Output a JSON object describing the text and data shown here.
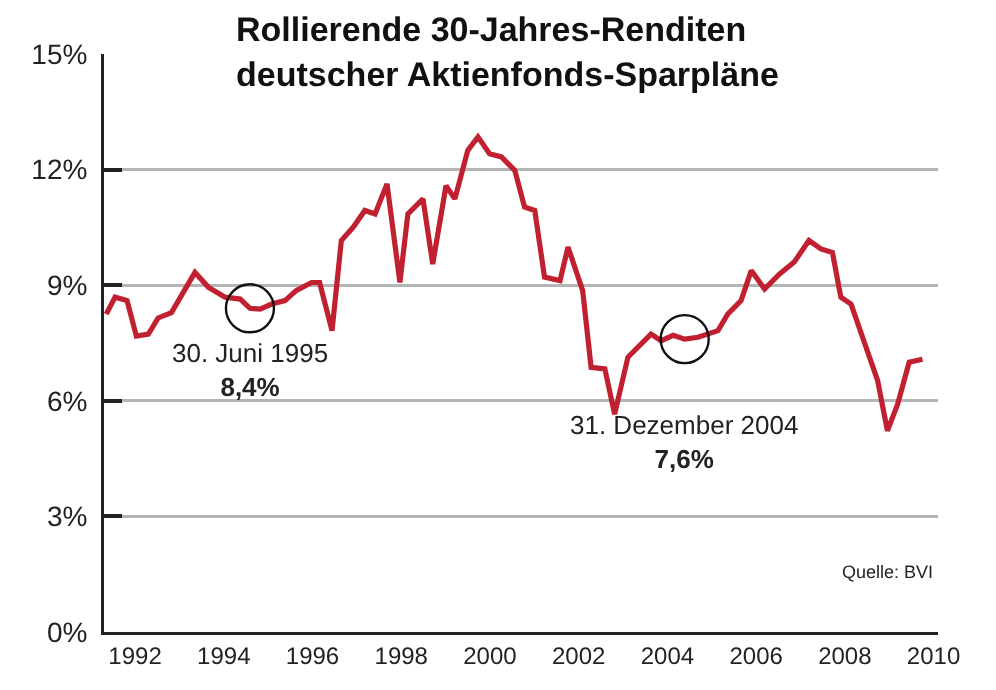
{
  "chart_data": {
    "type": "line",
    "title": "Rollierende 30-Jahres-Renditen\ndeutscher Aktienfonds-Sparpläne",
    "x": [
      1991.85,
      1992.05,
      1992.32,
      1992.53,
      1992.8,
      1993.02,
      1993.32,
      1993.85,
      1994.15,
      1994.53,
      1994.87,
      1995.09,
      1995.32,
      1995.58,
      1995.88,
      1996.13,
      1996.48,
      1996.66,
      1996.94,
      1997.15,
      1997.42,
      1997.68,
      1997.91,
      1998.18,
      1998.47,
      1998.65,
      1998.99,
      1999.21,
      1999.51,
      1999.71,
      2000.0,
      2000.23,
      2000.49,
      2000.76,
      2000.98,
      2001.06,
      2001.28,
      2001.51,
      2001.73,
      2002.08,
      2002.26,
      2002.59,
      2002.78,
      2003.09,
      2003.31,
      2003.61,
      2004.13,
      2004.36,
      2004.63,
      2004.89,
      2005.19,
      2005.64,
      2005.86,
      2006.16,
      2006.39,
      2006.69,
      2007.03,
      2007.36,
      2007.69,
      2007.96,
      2008.22,
      2008.41,
      2008.64,
      2009.24,
      2009.46,
      2009.69,
      2009.95,
      2010.25
    ],
    "series": [
      {
        "color": "#c0202f",
        "values": [
          8.25,
          8.69,
          8.6,
          7.68,
          7.73,
          8.15,
          8.29,
          9.33,
          8.95,
          8.69,
          8.64,
          8.4,
          8.38,
          8.51,
          8.6,
          8.86,
          9.07,
          9.07,
          7.82,
          10.16,
          10.51,
          10.94,
          10.85,
          11.63,
          9.07,
          10.85,
          11.24,
          9.55,
          11.58,
          11.24,
          12.5,
          12.85,
          12.41,
          12.33,
          12.07,
          11.98,
          11.03,
          10.94,
          9.21,
          9.12,
          9.99,
          8.86,
          6.87,
          6.83,
          5.65,
          7.13,
          7.73,
          7.56,
          7.7,
          7.6,
          7.65,
          7.82,
          8.25,
          8.6,
          9.38,
          8.9,
          9.29,
          9.6,
          10.16,
          9.94,
          9.85,
          8.69,
          8.51,
          6.52,
          5.22,
          5.91,
          7.0,
          7.08
        ]
      }
    ],
    "xlim": [
      1991.8,
      2010.6
    ],
    "xticks": [
      {
        "value": 1992.5,
        "label": "1992"
      },
      {
        "value": 1994.5,
        "label": "1994"
      },
      {
        "value": 1996.5,
        "label": "1996"
      },
      {
        "value": 1998.5,
        "label": "1998"
      },
      {
        "value": 2000.5,
        "label": "2000"
      },
      {
        "value": 2002.5,
        "label": "2002"
      },
      {
        "value": 2004.5,
        "label": "2004"
      },
      {
        "value": 2006.5,
        "label": "2006"
      },
      {
        "value": 2008.5,
        "label": "2008"
      },
      {
        "value": 2010.5,
        "label": "2010"
      }
    ],
    "ylim": [
      0,
      15
    ],
    "yticks": [
      {
        "value": 0,
        "label": "0%"
      },
      {
        "value": 3,
        "label": "3%"
      },
      {
        "value": 6,
        "label": "6%"
      },
      {
        "value": 9,
        "label": "9%"
      },
      {
        "value": 12,
        "label": "12%"
      },
      {
        "value": 15,
        "label": "15%"
      }
    ],
    "grid": "y",
    "marker": "none",
    "line_style": "solid",
    "annotations": [
      {
        "text": "30. Juni 1995\n8,4%",
        "x": 1995.09,
        "y": 8.4
      },
      {
        "text": "31. Dezember 2004\n7,6%",
        "x": 2004.89,
        "y": 7.6
      },
      "Quelle: BVI"
    ]
  }
}
